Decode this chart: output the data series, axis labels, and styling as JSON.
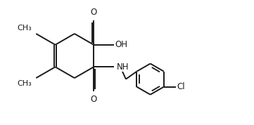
{
  "bg_color": "#ffffff",
  "line_color": "#1a1a1a",
  "line_width": 1.4,
  "font_size": 8.5,
  "methyl_label": "CH₃",
  "oh_label": "OH",
  "nh_label": "NH",
  "o_label": "O",
  "cl_label": "Cl"
}
